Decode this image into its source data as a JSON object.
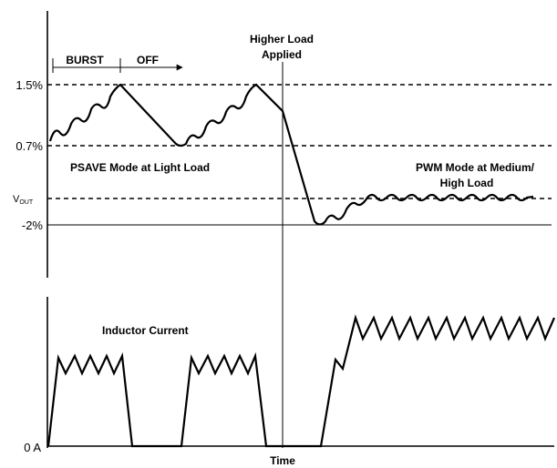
{
  "top_panel": {
    "levels": {
      "pct_high": "1.5%",
      "pct_mid": "0.7%",
      "vout": "V",
      "vout_sub": "OUT",
      "pct_low": "-2%"
    },
    "burst_label": "BURST",
    "off_label": "OFF",
    "higher_load_line1": "Higher Load",
    "higher_load_line2": "Applied",
    "psave_label": "PSAVE  Mode at Light Load",
    "pwm_line1": "PWM Mode at Medium/",
    "pwm_line2": "High Load"
  },
  "bottom_panel": {
    "inductor_label": "Inductor Current",
    "zero_label": "0 A",
    "time_label": "Time"
  }
}
